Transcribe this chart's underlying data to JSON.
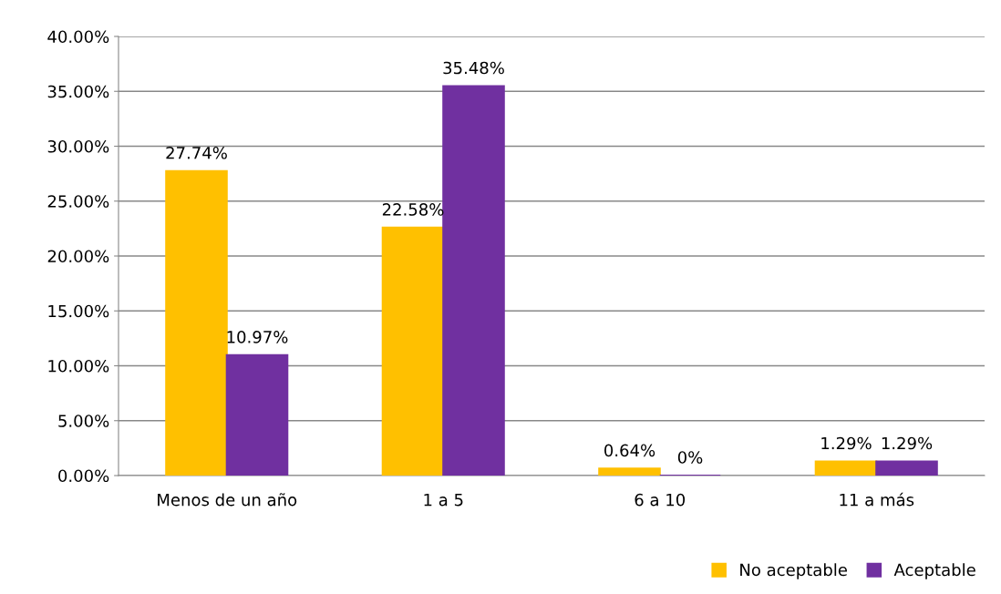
{
  "chart_data": {
    "type": "bar",
    "categories": [
      "Menos de un año",
      "1 a 5",
      "6 a 10",
      "11 a más"
    ],
    "series": [
      {
        "name": "No aceptable",
        "color": "#ffc000",
        "values": [
          27.74,
          22.58,
          0.64,
          1.29
        ],
        "value_labels": [
          "27.74%",
          "22.58%",
          "0.64%",
          "1.29%"
        ]
      },
      {
        "name": "Aceptable",
        "color": "#7030a0",
        "values": [
          10.97,
          35.48,
          0,
          1.29
        ],
        "value_labels": [
          "10.97%",
          "35.48%",
          "0%",
          "1.29%"
        ]
      }
    ],
    "ylim": [
      0,
      40
    ],
    "yticks": [
      {
        "value": 0,
        "label": "0.00%"
      },
      {
        "value": 5,
        "label": "5.00%"
      },
      {
        "value": 10,
        "label": "10.00%"
      },
      {
        "value": 15,
        "label": "15.00%"
      },
      {
        "value": 20,
        "label": "20.00%"
      },
      {
        "value": 25,
        "label": "25.00%"
      },
      {
        "value": 30,
        "label": "30.00%"
      },
      {
        "value": 35,
        "label": "35.00%"
      },
      {
        "value": 40,
        "label": "40.00%"
      }
    ],
    "grid": "y",
    "legend": "bottom right"
  }
}
